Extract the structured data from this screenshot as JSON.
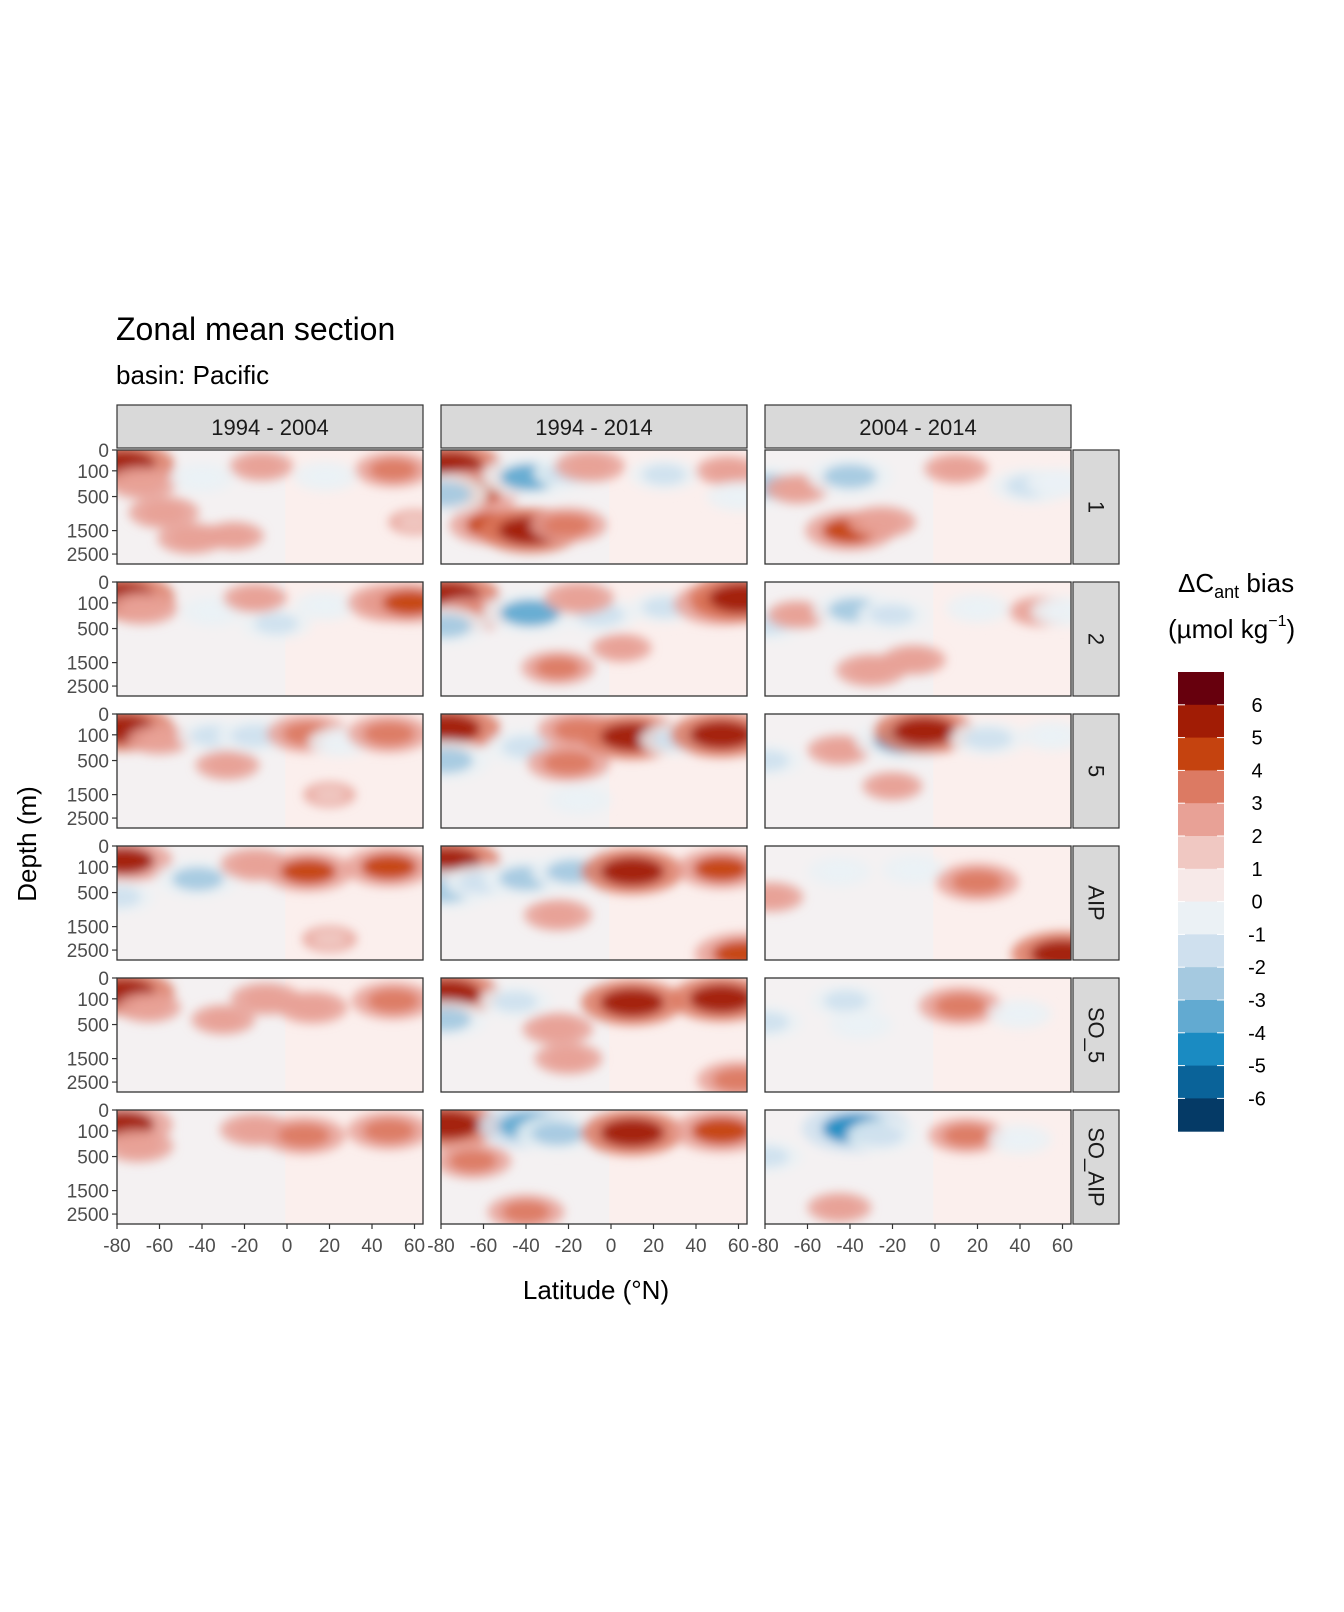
{
  "chart_data": {
    "type": "heatmap",
    "title": "Zonal mean section",
    "subtitle": "basin: Pacific",
    "xlabel": "Latitude (°N)",
    "ylabel": "Depth (m)",
    "x_ticks": [
      -80,
      -60,
      -40,
      -20,
      0,
      20,
      40,
      60
    ],
    "y_ticks": [
      0,
      100,
      500,
      1500,
      2500
    ],
    "xlim": [
      -80,
      64
    ],
    "ylim": [
      0,
      3000
    ],
    "column_facets": [
      "1994 - 2004",
      "1994 - 2014",
      "2004 - 2014"
    ],
    "row_facets": [
      "1",
      "2",
      "5",
      "AIP",
      "SO_5",
      "SO_AIP"
    ],
    "legend": {
      "title_main": "ΔC",
      "title_sub": "ant",
      "title_rest": " bias",
      "unit_pre": "(µmol kg",
      "unit_sup": "−1",
      "unit_post": ")",
      "position": "right",
      "labels": [
        "6",
        "5",
        "4",
        "3",
        "2",
        "1",
        "0",
        "-1",
        "-2",
        "-3",
        "-4",
        "-5",
        "-6"
      ],
      "colors": [
        "#67000d",
        "#a11c05",
        "#c5430f",
        "#dc7a63",
        "#e8a196",
        "#f0c8c2",
        "#f7e9e8",
        "#ebf1f5",
        "#cfe0ee",
        "#a5c9e0",
        "#62aad1",
        "#1a8bc2",
        "#0a6399",
        "#053a66"
      ]
    },
    "colors": {
      "panel_border": "#333333",
      "strip_fill": "#d9d9d9",
      "grid": "#ebebeb",
      "tick_text": "#4d4d4d"
    },
    "panels": [
      {
        "row": "1",
        "col": "1994 - 2004",
        "features": [
          {
            "lat": -77,
            "depth": 50,
            "value": 4.5
          },
          {
            "lat": -68,
            "depth": 250,
            "value": 2
          },
          {
            "lat": -58,
            "depth": 900,
            "value": 2
          },
          {
            "lat": -45,
            "depth": 1800,
            "value": 1.8
          },
          {
            "lat": -25,
            "depth": 1700,
            "value": 1.2
          },
          {
            "lat": -40,
            "depth": 180,
            "value": -1.5
          },
          {
            "lat": -12,
            "depth": 60,
            "value": 1.5
          },
          {
            "lat": 18,
            "depth": 160,
            "value": -1.6
          },
          {
            "lat": 50,
            "depth": 90,
            "value": 2.5
          },
          {
            "lat": 60,
            "depth": 1200,
            "value": 0.6
          }
        ]
      },
      {
        "row": "1",
        "col": "1994 - 2014",
        "features": [
          {
            "lat": -76,
            "depth": 60,
            "value": 4.8
          },
          {
            "lat": -65,
            "depth": 400,
            "value": 4
          },
          {
            "lat": -55,
            "depth": 1300,
            "value": 3.5
          },
          {
            "lat": -38,
            "depth": 1500,
            "value": 4.5
          },
          {
            "lat": -20,
            "depth": 1300,
            "value": 2.5
          },
          {
            "lat": -79,
            "depth": 450,
            "value": -3.5
          },
          {
            "lat": -38,
            "depth": 170,
            "value": -4
          },
          {
            "lat": -20,
            "depth": 120,
            "value": -2
          },
          {
            "lat": -10,
            "depth": 60,
            "value": 2
          },
          {
            "lat": 25,
            "depth": 140,
            "value": -2
          },
          {
            "lat": 55,
            "depth": 100,
            "value": 1.5
          },
          {
            "lat": 60,
            "depth": 500,
            "value": -1.5
          }
        ]
      },
      {
        "row": "1",
        "col": "2004 - 2014",
        "features": [
          {
            "lat": -79,
            "depth": 300,
            "value": -3.5
          },
          {
            "lat": -65,
            "depth": 350,
            "value": 1.5
          },
          {
            "lat": -40,
            "depth": 1500,
            "value": 3.5
          },
          {
            "lat": -25,
            "depth": 1200,
            "value": 1.8
          },
          {
            "lat": -40,
            "depth": 160,
            "value": -3.2
          },
          {
            "lat": 10,
            "depth": 80,
            "value": 1.5
          },
          {
            "lat": 45,
            "depth": 300,
            "value": -2.8
          },
          {
            "lat": 58,
            "depth": 250,
            "value": -1.5
          }
        ]
      },
      {
        "row": "2",
        "col": "1994 - 2004",
        "features": [
          {
            "lat": -77,
            "depth": 50,
            "value": 4.5
          },
          {
            "lat": -68,
            "depth": 160,
            "value": 2
          },
          {
            "lat": -35,
            "depth": 200,
            "value": -1.5
          },
          {
            "lat": -5,
            "depth": 400,
            "value": -2
          },
          {
            "lat": 18,
            "depth": 130,
            "value": -1.5
          },
          {
            "lat": 48,
            "depth": 100,
            "value": 3
          },
          {
            "lat": 58,
            "depth": 100,
            "value": 3.5
          },
          {
            "lat": -15,
            "depth": 60,
            "value": 1.5
          }
        ]
      },
      {
        "row": "2",
        "col": "1994 - 2014",
        "features": [
          {
            "lat": -77,
            "depth": 50,
            "value": 4.8
          },
          {
            "lat": -66,
            "depth": 250,
            "value": 2.5
          },
          {
            "lat": -78,
            "depth": 450,
            "value": -3
          },
          {
            "lat": -38,
            "depth": 220,
            "value": -4
          },
          {
            "lat": -5,
            "depth": 250,
            "value": -2.5
          },
          {
            "lat": -15,
            "depth": 60,
            "value": 2
          },
          {
            "lat": -25,
            "depth": 1700,
            "value": 2.2
          },
          {
            "lat": 5,
            "depth": 1000,
            "value": 1.2
          },
          {
            "lat": 25,
            "depth": 150,
            "value": -2
          },
          {
            "lat": 52,
            "depth": 110,
            "value": 4
          },
          {
            "lat": 62,
            "depth": 60,
            "value": 5
          }
        ]
      },
      {
        "row": "2",
        "col": "2004 - 2014",
        "features": [
          {
            "lat": -79,
            "depth": 400,
            "value": -2.5
          },
          {
            "lat": -65,
            "depth": 250,
            "value": 1.2
          },
          {
            "lat": -38,
            "depth": 180,
            "value": -3
          },
          {
            "lat": -20,
            "depth": 250,
            "value": -2
          },
          {
            "lat": -30,
            "depth": 1800,
            "value": 2
          },
          {
            "lat": -10,
            "depth": 1400,
            "value": 1.5
          },
          {
            "lat": 20,
            "depth": 160,
            "value": -1.5
          },
          {
            "lat": 50,
            "depth": 200,
            "value": 1.5
          },
          {
            "lat": 60,
            "depth": 200,
            "value": -1.5
          }
        ]
      },
      {
        "row": "5",
        "col": "1994 - 2004",
        "features": [
          {
            "lat": -77,
            "depth": 50,
            "value": 4.5
          },
          {
            "lat": -60,
            "depth": 150,
            "value": 1.5
          },
          {
            "lat": -35,
            "depth": 110,
            "value": -2
          },
          {
            "lat": -28,
            "depth": 600,
            "value": 1.5
          },
          {
            "lat": -15,
            "depth": 110,
            "value": -2.5
          },
          {
            "lat": 10,
            "depth": 90,
            "value": 3
          },
          {
            "lat": 25,
            "depth": 180,
            "value": -1.5
          },
          {
            "lat": 48,
            "depth": 90,
            "value": 3
          },
          {
            "lat": 20,
            "depth": 1500,
            "value": 0.6
          }
        ]
      },
      {
        "row": "5",
        "col": "1994 - 2014",
        "features": [
          {
            "lat": -77,
            "depth": 50,
            "value": 4.8
          },
          {
            "lat": -78,
            "depth": 500,
            "value": -3.5
          },
          {
            "lat": -40,
            "depth": 250,
            "value": -2.5
          },
          {
            "lat": -20,
            "depth": 550,
            "value": 3
          },
          {
            "lat": -15,
            "depth": 60,
            "value": 3
          },
          {
            "lat": 10,
            "depth": 120,
            "value": 4.5
          },
          {
            "lat": 30,
            "depth": 150,
            "value": -2
          },
          {
            "lat": 52,
            "depth": 100,
            "value": 4.5
          },
          {
            "lat": -15,
            "depth": 1700,
            "value": -1.5
          }
        ]
      },
      {
        "row": "5",
        "col": "2004 - 2014",
        "features": [
          {
            "lat": -79,
            "depth": 500,
            "value": -2
          },
          {
            "lat": -45,
            "depth": 300,
            "value": 1.5
          },
          {
            "lat": -15,
            "depth": 160,
            "value": -4
          },
          {
            "lat": -5,
            "depth": 70,
            "value": 4.5
          },
          {
            "lat": 25,
            "depth": 140,
            "value": -2.5
          },
          {
            "lat": 55,
            "depth": 110,
            "value": -1.5
          },
          {
            "lat": -20,
            "depth": 1200,
            "value": 1.2
          }
        ]
      },
      {
        "row": "AIP",
        "col": "1994 - 2004",
        "features": [
          {
            "lat": -77,
            "depth": 50,
            "value": 4.2
          },
          {
            "lat": -79,
            "depth": 600,
            "value": -2
          },
          {
            "lat": -42,
            "depth": 250,
            "value": -3
          },
          {
            "lat": -15,
            "depth": 80,
            "value": 2
          },
          {
            "lat": 10,
            "depth": 150,
            "value": 3.5
          },
          {
            "lat": 48,
            "depth": 100,
            "value": 3.5
          },
          {
            "lat": 20,
            "depth": 2000,
            "value": 0.8
          }
        ]
      },
      {
        "row": "AIP",
        "col": "1994 - 2014",
        "features": [
          {
            "lat": -77,
            "depth": 60,
            "value": 4.8
          },
          {
            "lat": -78,
            "depth": 450,
            "value": -3.5
          },
          {
            "lat": -60,
            "depth": 300,
            "value": -2.5
          },
          {
            "lat": -40,
            "depth": 240,
            "value": -3.2
          },
          {
            "lat": -18,
            "depth": 150,
            "value": -3
          },
          {
            "lat": -25,
            "depth": 1100,
            "value": 1.8
          },
          {
            "lat": 10,
            "depth": 150,
            "value": 4.5
          },
          {
            "lat": 52,
            "depth": 120,
            "value": 3.5
          },
          {
            "lat": 62,
            "depth": 2700,
            "value": 4
          }
        ]
      },
      {
        "row": "AIP",
        "col": "2004 - 2014",
        "features": [
          {
            "lat": -77,
            "depth": 600,
            "value": 1.5
          },
          {
            "lat": -45,
            "depth": 150,
            "value": -1.5
          },
          {
            "lat": -10,
            "depth": 130,
            "value": -1.5
          },
          {
            "lat": 20,
            "depth": 300,
            "value": 3
          },
          {
            "lat": 60,
            "depth": 2700,
            "value": 4.5
          }
        ]
      },
      {
        "row": "SO_5",
        "col": "1994 - 2004",
        "features": [
          {
            "lat": -77,
            "depth": 50,
            "value": 4.5
          },
          {
            "lat": -65,
            "depth": 200,
            "value": 1.5
          },
          {
            "lat": -30,
            "depth": 400,
            "value": 1.5
          },
          {
            "lat": -10,
            "depth": 100,
            "value": 2
          },
          {
            "lat": 12,
            "depth": 200,
            "value": 2
          },
          {
            "lat": 50,
            "depth": 120,
            "value": 3
          }
        ]
      },
      {
        "row": "SO_5",
        "col": "1994 - 2014",
        "features": [
          {
            "lat": -77,
            "depth": 60,
            "value": 4.8
          },
          {
            "lat": -78,
            "depth": 400,
            "value": -3
          },
          {
            "lat": -45,
            "depth": 130,
            "value": -2
          },
          {
            "lat": -25,
            "depth": 600,
            "value": 2
          },
          {
            "lat": -20,
            "depth": 1500,
            "value": 1.8
          },
          {
            "lat": 10,
            "depth": 140,
            "value": 4.5
          },
          {
            "lat": 52,
            "depth": 100,
            "value": 4.5
          },
          {
            "lat": 60,
            "depth": 2400,
            "value": 3
          }
        ]
      },
      {
        "row": "SO_5",
        "col": "2004 - 2014",
        "features": [
          {
            "lat": -79,
            "depth": 450,
            "value": -2
          },
          {
            "lat": -42,
            "depth": 120,
            "value": -2
          },
          {
            "lat": -35,
            "depth": 500,
            "value": -1.5
          },
          {
            "lat": 12,
            "depth": 180,
            "value": 3
          },
          {
            "lat": 40,
            "depth": 300,
            "value": -1.5
          }
        ]
      },
      {
        "row": "SO_AIP",
        "col": "1994 - 2004",
        "features": [
          {
            "lat": -77,
            "depth": 50,
            "value": 4.2
          },
          {
            "lat": -70,
            "depth": 300,
            "value": 2
          },
          {
            "lat": -15,
            "depth": 90,
            "value": 2
          },
          {
            "lat": 8,
            "depth": 150,
            "value": 3
          },
          {
            "lat": 48,
            "depth": 100,
            "value": 3
          }
        ]
      },
      {
        "row": "SO_AIP",
        "col": "1994 - 2014",
        "features": [
          {
            "lat": -77,
            "depth": 50,
            "value": 4.8
          },
          {
            "lat": -65,
            "depth": 600,
            "value": 2.5
          },
          {
            "lat": -40,
            "depth": 2400,
            "value": 2.5
          },
          {
            "lat": -38,
            "depth": 60,
            "value": -4.5
          },
          {
            "lat": -25,
            "depth": 130,
            "value": -3
          },
          {
            "lat": 10,
            "depth": 120,
            "value": 4.5
          },
          {
            "lat": 52,
            "depth": 100,
            "value": 4
          }
        ]
      },
      {
        "row": "SO_AIP",
        "col": "2004 - 2014",
        "features": [
          {
            "lat": -79,
            "depth": 500,
            "value": -2
          },
          {
            "lat": -37,
            "depth": 80,
            "value": -5
          },
          {
            "lat": -25,
            "depth": 150,
            "value": -2
          },
          {
            "lat": -45,
            "depth": 2200,
            "value": 1.5
          },
          {
            "lat": 15,
            "depth": 150,
            "value": 2.5
          },
          {
            "lat": 40,
            "depth": 200,
            "value": -1.5
          }
        ]
      }
    ]
  }
}
